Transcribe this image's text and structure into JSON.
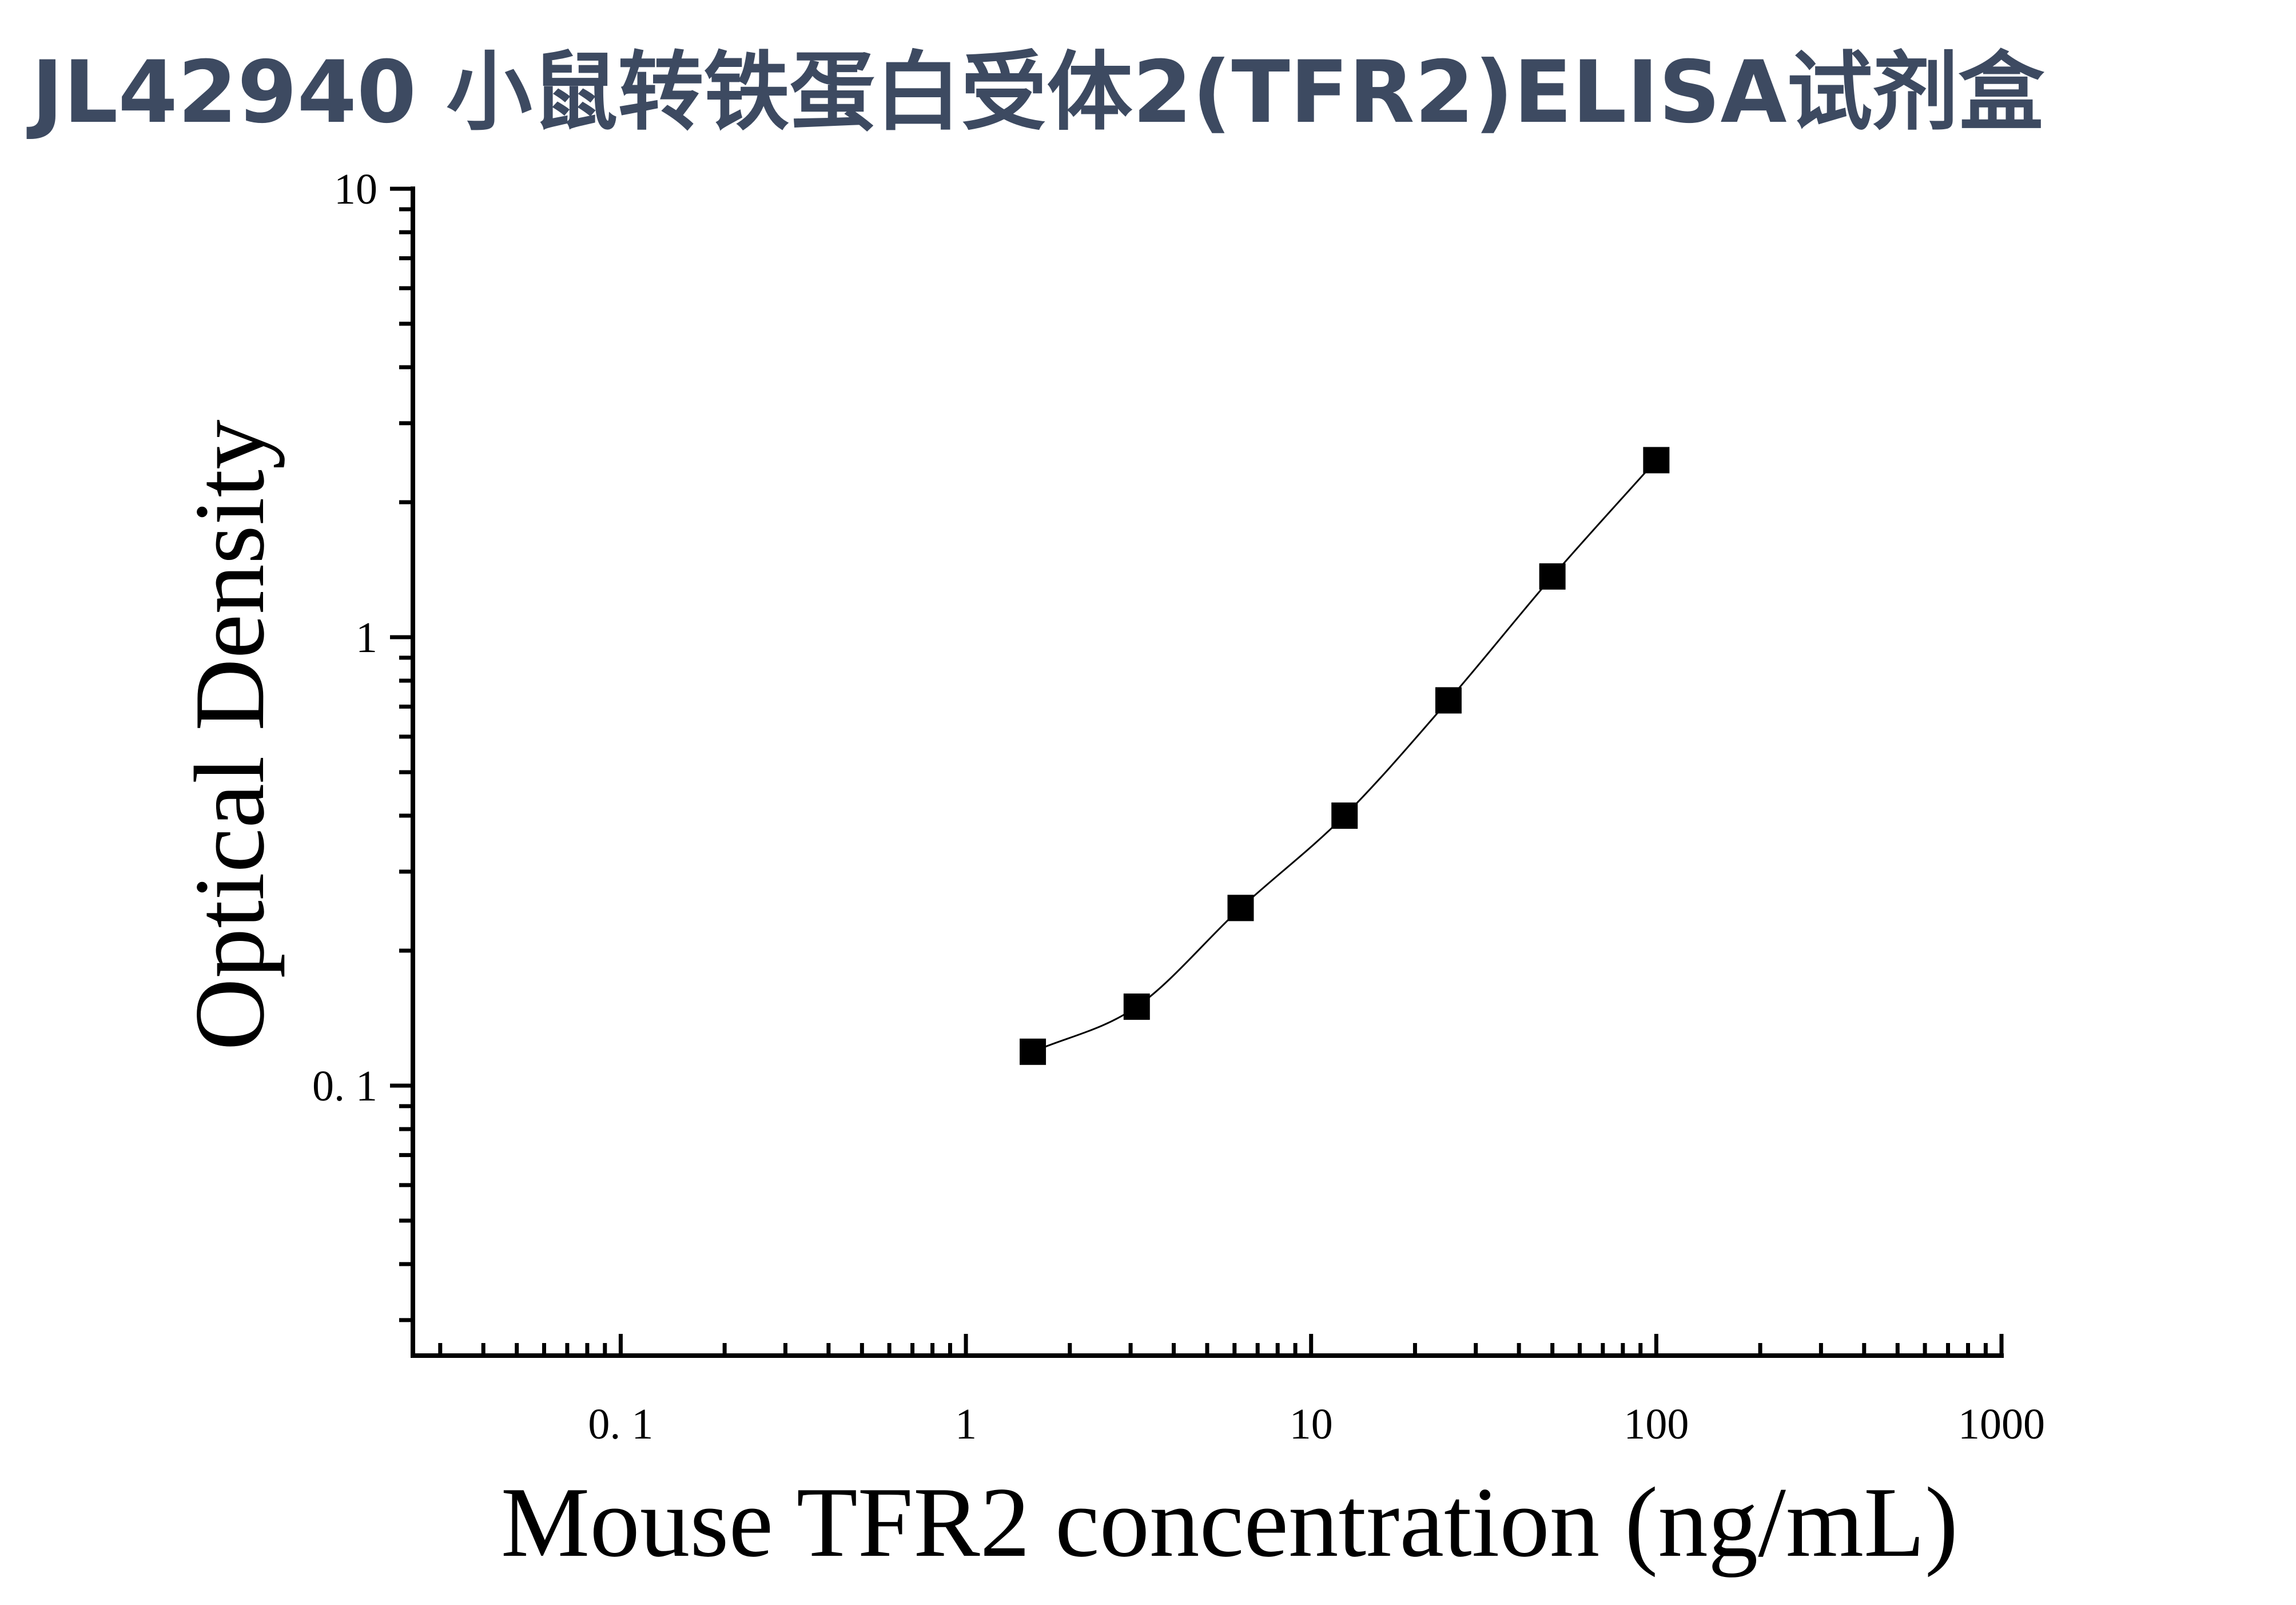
{
  "title": "JL42940 小鼠转铁蛋白受体2(TFR2)ELISA试剂盒",
  "colors": {
    "title": "#3d4a61",
    "axis": "#000000",
    "marker": "#000000"
  },
  "chart_data": {
    "type": "scatter",
    "xlabel": "Mouse TFR2 concentration (ng/mL)",
    "ylabel": "Optical Density",
    "xscale": "log",
    "yscale": "log",
    "xlim": [
      0.025,
      1000
    ],
    "ylim": [
      0.025,
      10
    ],
    "x_ticks": [
      {
        "value": 0.1,
        "label": "0. 1"
      },
      {
        "value": 1,
        "label": "1"
      },
      {
        "value": 10,
        "label": "10"
      },
      {
        "value": 100,
        "label": "100"
      },
      {
        "value": 1000,
        "label": "1000"
      }
    ],
    "y_ticks": [
      {
        "value": 0.1,
        "label": "0. 1"
      },
      {
        "value": 1,
        "label": "1"
      },
      {
        "value": 10,
        "label": "10"
      }
    ],
    "grid": false,
    "fit_curve": true,
    "series": [
      {
        "marker": "square",
        "x": [
          1.5625,
          3.125,
          6.25,
          12.5,
          25,
          50,
          100
        ],
        "y": [
          0.119,
          0.15,
          0.249,
          0.4,
          0.723,
          1.366,
          2.482
        ]
      }
    ]
  }
}
